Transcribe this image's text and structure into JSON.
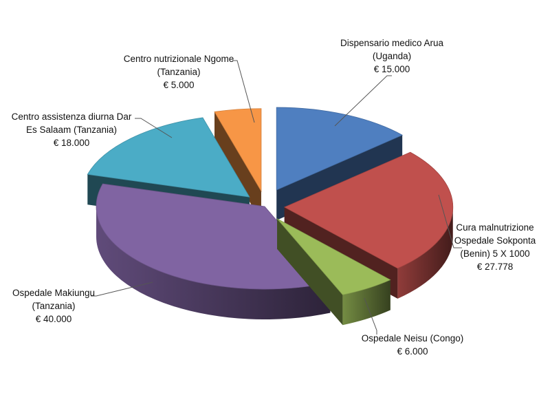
{
  "chart_data": {
    "type": "pie",
    "title": "",
    "categories": [
      [
        "Dispensario medico Arua",
        "(Uganda)"
      ],
      [
        "Cura malnutrizione",
        "Ospedale Sokponta",
        "(Benin) 5 X 1000"
      ],
      [
        "Ospedale Neisu (Congo)"
      ],
      [
        "Ospedale Makiungu",
        "(Tanzania)"
      ],
      [
        "Centro assistenza diurna  Dar",
        "Es Salaam (Tanzania)"
      ],
      [
        "Centro nutrizionale Ngome",
        "(Tanzania)"
      ]
    ],
    "values": [
      15000,
      27778,
      6000,
      40000,
      18000,
      5000
    ],
    "value_labels": [
      "€ 15.000",
      "€ 27.778",
      "€ 6.000",
      "€ 40.000",
      "€ 18.000",
      "€ 5.000"
    ],
    "colors": [
      "#4f7fc0",
      "#c0504d",
      "#9bbb59",
      "#8064a2",
      "#4bacc6",
      "#f79646"
    ],
    "exploded": true,
    "three_d": true,
    "legend": "none"
  }
}
